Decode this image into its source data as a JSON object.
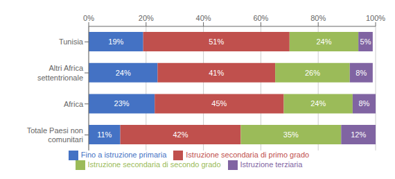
{
  "chart_data": {
    "type": "bar",
    "orientation": "horizontal",
    "stacked": true,
    "categories": [
      "Tunisia",
      "Altri Africa\nsettentrionale",
      "Africa",
      "Totale Paesi non\ncomunitari"
    ],
    "series": [
      {
        "name": "Fino a istruzione primaria",
        "color": "#4472C4",
        "values": [
          19,
          24,
          23,
          11
        ],
        "value_labels": [
          "19%",
          "24%",
          "23%",
          "11%"
        ]
      },
      {
        "name": "Istruzione secondaria di primo grado",
        "color": "#C0504D",
        "values": [
          51,
          41,
          45,
          42
        ],
        "value_labels": [
          "51%",
          "41%",
          "45%",
          "42%"
        ]
      },
      {
        "name": "Istruzione secondaria di secondo grado",
        "color": "#9BBB59",
        "values": [
          24,
          26,
          24,
          35
        ],
        "value_labels": [
          "24%",
          "26%",
          "24%",
          "35%"
        ]
      },
      {
        "name": "Istruzione terziaria",
        "color": "#8064A2",
        "values": [
          5,
          8,
          8,
          12
        ],
        "value_labels": [
          "5%",
          "8%",
          "8%",
          "12%"
        ]
      }
    ],
    "xlim": [
      0,
      100
    ],
    "xticks": [
      {
        "value": 0,
        "label": "0%"
      },
      {
        "value": 20,
        "label": "20%"
      },
      {
        "value": 40,
        "label": "40%"
      },
      {
        "value": 60,
        "label": "60%"
      },
      {
        "value": 80,
        "label": "80%"
      },
      {
        "value": 100,
        "label": "100%"
      }
    ],
    "grid": true,
    "data_labels": true,
    "legend": "bottom"
  }
}
